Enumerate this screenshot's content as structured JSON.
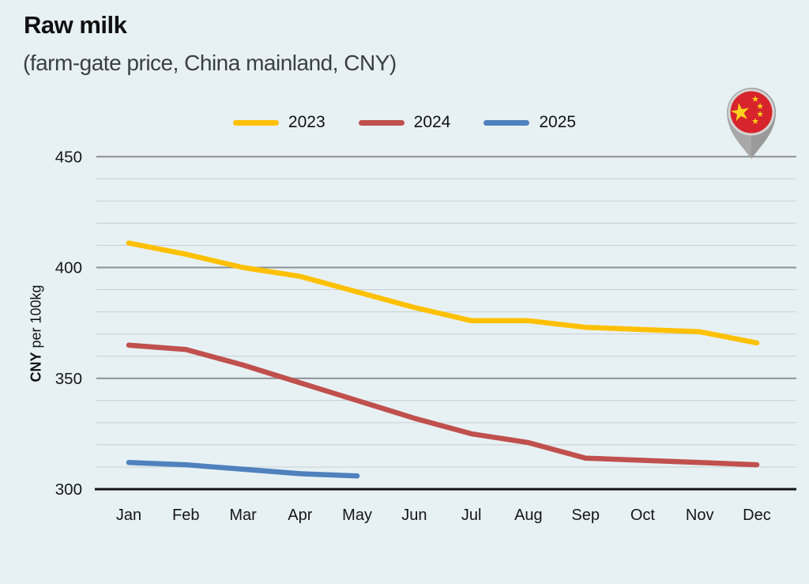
{
  "header": {
    "title": "Raw milk",
    "subtitle": "(farm-gate price, China mainland, CNY)"
  },
  "icons": {
    "flag_pin": "china-flag-map-pin",
    "star_glyph": "★"
  },
  "colors": {
    "background": "#E7F1F4",
    "minor_grid": "#C8CED2",
    "major_grid": "#8A9095",
    "axis": "#141414",
    "flag_red": "#D7232B",
    "flag_star_yellow": "#FFD21E",
    "pin_gray": "#A8A8A8"
  },
  "chart_data": {
    "type": "line",
    "title": "Raw milk",
    "subtitle": "(farm-gate price, China mainland, CNY)",
    "ylabel_primary": "CNY",
    "ylabel_secondary": "per 100kg",
    "categories": [
      "Jan",
      "Feb",
      "Mar",
      "Apr",
      "May",
      "Jun",
      "Jul",
      "Aug",
      "Sep",
      "Oct",
      "Nov",
      "Dec"
    ],
    "y_ticks": [
      450,
      400,
      350,
      300
    ],
    "ylim": [
      300,
      455
    ],
    "minor_grid_step": 10,
    "grid": true,
    "legend_position": "top",
    "series": [
      {
        "name": "2023",
        "color": "#FFC000",
        "values": [
          411,
          406,
          400,
          396,
          389,
          382,
          376,
          376,
          373,
          372,
          371,
          366
        ]
      },
      {
        "name": "2024",
        "color": "#C0504D",
        "values": [
          365,
          363,
          356,
          348,
          340,
          332,
          325,
          321,
          314,
          313,
          312,
          311
        ]
      },
      {
        "name": "2025",
        "color": "#4F81BD",
        "values": [
          312,
          311,
          309,
          307,
          306
        ]
      }
    ]
  }
}
